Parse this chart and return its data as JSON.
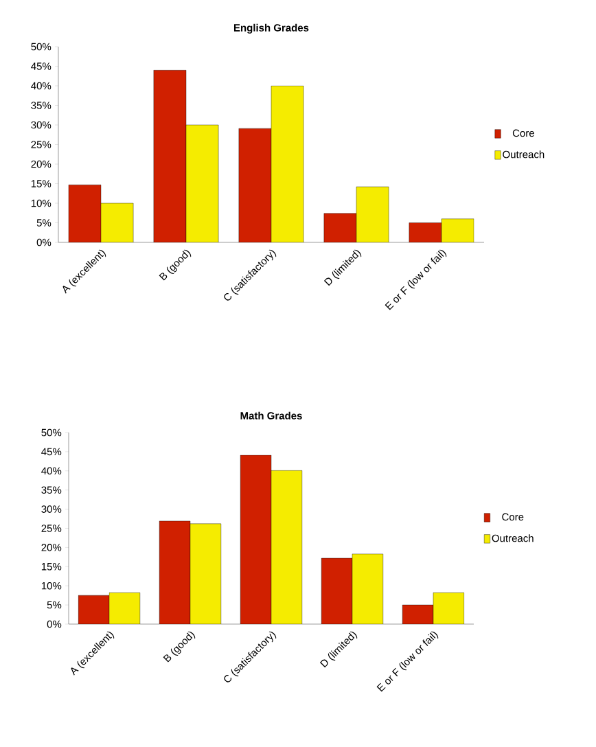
{
  "chart_data": [
    {
      "type": "bar",
      "title": "English Grades",
      "categories": [
        "A (excellent)",
        "B (good)",
        "C (satisfactory)",
        "D (limited)",
        "E or F (low or fail)"
      ],
      "series": [
        {
          "name": "Core",
          "color": "#d02000",
          "values": [
            14.7,
            44,
            29.1,
            7.4,
            5
          ]
        },
        {
          "name": "Outreach",
          "color": "#f5ec00",
          "values": [
            10,
            30,
            40,
            14.2,
            6
          ]
        }
      ],
      "ylim": [
        0,
        50
      ],
      "yticks": [
        {
          "value": 0,
          "label": "0%"
        },
        {
          "value": 5,
          "label": "5%"
        },
        {
          "value": 10,
          "label": "10%"
        },
        {
          "value": 15,
          "label": "15%"
        },
        {
          "value": 20,
          "label": "20%"
        },
        {
          "value": 25,
          "label": "25%"
        },
        {
          "value": 30,
          "label": "30%"
        },
        {
          "value": 35,
          "label": "35%"
        },
        {
          "value": 40,
          "label": "40%"
        },
        {
          "value": 45,
          "label": "45%"
        },
        {
          "value": 50,
          "label": "50%"
        }
      ],
      "legend": "right"
    },
    {
      "type": "bar",
      "title": "Math Grades",
      "categories": [
        "A (excellent)",
        "B (good)",
        "C (satisfactory)",
        "D (limited)",
        "E or F (low or fail)"
      ],
      "series": [
        {
          "name": "Core",
          "color": "#d02000",
          "values": [
            7.5,
            26.9,
            44.1,
            17.2,
            5
          ]
        },
        {
          "name": "Outreach",
          "color": "#f5ec00",
          "values": [
            8.2,
            26.2,
            40.1,
            18.3,
            8.2
          ]
        }
      ],
      "ylim": [
        0,
        50
      ],
      "yticks": [
        {
          "value": 0,
          "label": "0%"
        },
        {
          "value": 5,
          "label": "5%"
        },
        {
          "value": 10,
          "label": "10%"
        },
        {
          "value": 15,
          "label": "15%"
        },
        {
          "value": 20,
          "label": "20%"
        },
        {
          "value": 25,
          "label": "25%"
        },
        {
          "value": 30,
          "label": "30%"
        },
        {
          "value": 35,
          "label": "35%"
        },
        {
          "value": 40,
          "label": "40%"
        },
        {
          "value": 45,
          "label": "45%"
        },
        {
          "value": 50,
          "label": "50%"
        }
      ],
      "legend": "right"
    }
  ]
}
